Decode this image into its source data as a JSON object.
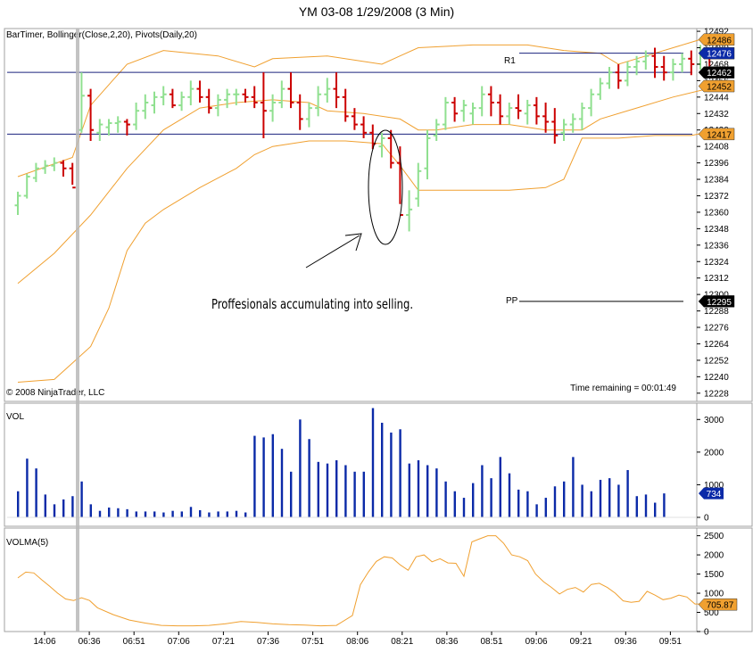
{
  "window": {
    "title": "YM 03-08  1/29/2008  (3 Min)"
  },
  "price_panel": {
    "indicators_label": "BarTimer, Bollinger(Close,2,20), Pivots(Daily,20)",
    "copyright": "© 2008 NinjaTrader, LLC",
    "time_remaining": "Time remaining = 00:01:49",
    "annotation": "Proffesionals accumulating into selling.",
    "pivot_labels": {
      "r1": "R1",
      "pp": "PP"
    },
    "price_badges": [
      {
        "value": "12486",
        "color": "#f0a030"
      },
      {
        "value": "12476",
        "color": "#0b2aa8"
      },
      {
        "value": "12462",
        "color": "#000000"
      },
      {
        "value": "12452",
        "color": "#f0a030"
      },
      {
        "value": "12417",
        "color": "#f0a030"
      },
      {
        "value": "12295",
        "color": "#000000"
      }
    ]
  },
  "vol_panel": {
    "label": "VOL",
    "badge": "734",
    "badge_color": "#0b2aa8"
  },
  "volma_panel": {
    "label": "VOLMA(5)",
    "badge": "705.87",
    "badge_color": "#f0a030"
  },
  "chart_data": [
    {
      "type": "ohlc",
      "title": "YM 03-08  1/29/2008  (3 Min)",
      "ylim": [
        12222,
        12494
      ],
      "yticks": [
        12228,
        12240,
        12252,
        12264,
        12276,
        12288,
        12300,
        12312,
        12324,
        12336,
        12348,
        12360,
        12372,
        12384,
        12396,
        12408,
        12420,
        12432,
        12444,
        12456,
        12468,
        12480,
        12492
      ],
      "xticks": [
        "14:06",
        "06:36",
        "06:51",
        "07:06",
        "07:21",
        "07:36",
        "07:51",
        "08:06",
        "08:21",
        "08:36",
        "08:51",
        "09:06",
        "09:21",
        "09:36",
        "09:51"
      ],
      "colors": {
        "up": "#90e090",
        "down": "#cc0000",
        "bollinger": "#f0a030",
        "pivot": "#0b2aa8"
      },
      "horizontal_lines": [
        12462,
        12417
      ],
      "pivots": {
        "R1": 12476,
        "PP": 12295
      },
      "bars": [
        [
          12365,
          12375,
          12358,
          12372
        ],
        [
          12372,
          12388,
          12370,
          12386
        ],
        [
          12385,
          12396,
          12382,
          12392
        ],
        [
          12392,
          12398,
          12388,
          12394
        ],
        [
          12394,
          12400,
          12390,
          12396
        ],
        [
          12396,
          12398,
          12386,
          12392
        ],
        [
          12392,
          12396,
          12380,
          12378
        ],
        [
          12420,
          12462,
          12418,
          12445
        ],
        [
          12445,
          12450,
          12412,
          12420
        ],
        [
          12418,
          12428,
          12412,
          12424
        ],
        [
          12422,
          12428,
          12416,
          12425
        ],
        [
          12425,
          12430,
          12418,
          12426
        ],
        [
          12426,
          12428,
          12416,
          12424
        ],
        [
          12424,
          12440,
          12420,
          12434
        ],
        [
          12434,
          12446,
          12428,
          12440
        ],
        [
          12438,
          12448,
          12432,
          12444
        ],
        [
          12444,
          12452,
          12438,
          12446
        ],
        [
          12446,
          12450,
          12436,
          12438
        ],
        [
          12438,
          12448,
          12434,
          12444
        ],
        [
          12444,
          12456,
          12438,
          12450
        ],
        [
          12450,
          12456,
          12440,
          12444
        ],
        [
          12444,
          12450,
          12432,
          12436
        ],
        [
          12436,
          12446,
          12430,
          12442
        ],
        [
          12442,
          12450,
          12436,
          12446
        ],
        [
          12446,
          12450,
          12438,
          12446
        ],
        [
          12446,
          12450,
          12440,
          12444
        ],
        [
          12444,
          12452,
          12436,
          12440
        ],
        [
          12440,
          12462,
          12414,
          12434
        ],
        [
          12434,
          12446,
          12426,
          12440
        ],
        [
          12440,
          12456,
          12436,
          12450
        ],
        [
          12450,
          12462,
          12436,
          12440
        ],
        [
          12440,
          12446,
          12420,
          12428
        ],
        [
          12428,
          12440,
          12422,
          12436
        ],
        [
          12436,
          12452,
          12430,
          12446
        ],
        [
          12446,
          12458,
          12440,
          12450
        ],
        [
          12450,
          12462,
          12436,
          12444
        ],
        [
          12444,
          12450,
          12426,
          12430
        ],
        [
          12430,
          12436,
          12420,
          12424
        ],
        [
          12424,
          12430,
          12414,
          12418
        ],
        [
          12418,
          12424,
          12406,
          12410
        ],
        [
          12408,
          12418,
          12400,
          12414
        ],
        [
          12414,
          12420,
          12392,
          12396
        ],
        [
          12396,
          12408,
          12366,
          12358
        ],
        [
          12358,
          12376,
          12346,
          12362
        ],
        [
          12370,
          12396,
          12364,
          12390
        ],
        [
          12392,
          12420,
          12384,
          12414
        ],
        [
          12416,
          12428,
          12412,
          12424
        ],
        [
          12424,
          12444,
          12420,
          12440
        ],
        [
          12440,
          12444,
          12426,
          12432
        ],
        [
          12434,
          12442,
          12426,
          12438
        ],
        [
          12432,
          12440,
          12424,
          12436
        ],
        [
          12436,
          12452,
          12430,
          12446
        ],
        [
          12446,
          12452,
          12430,
          12440
        ],
        [
          12440,
          12446,
          12424,
          12430
        ],
        [
          12430,
          12440,
          12424,
          12436
        ],
        [
          12436,
          12446,
          12428,
          12434
        ],
        [
          12432,
          12442,
          12424,
          12438
        ],
        [
          12438,
          12444,
          12424,
          12430
        ],
        [
          12430,
          12440,
          12418,
          12426
        ],
        [
          12426,
          12436,
          12410,
          12416
        ],
        [
          12418,
          12428,
          12412,
          12424
        ],
        [
          12424,
          12432,
          12418,
          12428
        ],
        [
          12428,
          12440,
          12420,
          12436
        ],
        [
          12436,
          12450,
          12430,
          12446
        ],
        [
          12446,
          12458,
          12442,
          12454
        ],
        [
          12454,
          12466,
          12450,
          12462
        ],
        [
          12462,
          12468,
          12450,
          12456
        ],
        [
          12456,
          12470,
          12452,
          12466
        ],
        [
          12466,
          12474,
          12460,
          12470
        ],
        [
          12470,
          12478,
          12464,
          12474
        ],
        [
          12474,
          12480,
          12458,
          12466
        ],
        [
          12466,
          12474,
          12456,
          12462
        ],
        [
          12462,
          12472,
          12456,
          12468
        ],
        [
          12468,
          12476,
          12462,
          12472
        ],
        [
          12472,
          12478,
          12460,
          12468
        ],
        [
          12468,
          12482,
          12464,
          12476
        ],
        [
          12476,
          12480,
          12460,
          12462
        ]
      ],
      "bollinger": {
        "upper": [
          [
            0,
            12386
          ],
          [
            6,
            12400
          ],
          [
            8,
            12438
          ],
          [
            12,
            12468
          ],
          [
            16,
            12478
          ],
          [
            22,
            12474
          ],
          [
            26,
            12466
          ],
          [
            28,
            12472
          ],
          [
            34,
            12474
          ],
          [
            40,
            12468
          ],
          [
            42,
            12474
          ],
          [
            44,
            12480
          ],
          [
            50,
            12482
          ],
          [
            56,
            12482
          ],
          [
            60,
            12478
          ],
          [
            64,
            12476
          ],
          [
            66,
            12468
          ],
          [
            70,
            12476
          ],
          [
            74,
            12484
          ],
          [
            77,
            12490
          ]
        ],
        "middle": [
          [
            0,
            12308
          ],
          [
            4,
            12330
          ],
          [
            8,
            12358
          ],
          [
            12,
            12392
          ],
          [
            16,
            12420
          ],
          [
            20,
            12436
          ],
          [
            24,
            12440
          ],
          [
            28,
            12442
          ],
          [
            32,
            12440
          ],
          [
            34,
            12434
          ],
          [
            38,
            12432
          ],
          [
            42,
            12428
          ],
          [
            44,
            12420
          ],
          [
            46,
            12420
          ],
          [
            50,
            12424
          ],
          [
            54,
            12424
          ],
          [
            58,
            12420
          ],
          [
            62,
            12420
          ],
          [
            64,
            12428
          ],
          [
            68,
            12436
          ],
          [
            72,
            12444
          ],
          [
            77,
            12452
          ]
        ],
        "lower": [
          [
            0,
            12236
          ],
          [
            4,
            12238
          ],
          [
            6,
            12250
          ],
          [
            8,
            12262
          ],
          [
            10,
            12290
          ],
          [
            12,
            12332
          ],
          [
            14,
            12352
          ],
          [
            16,
            12362
          ],
          [
            20,
            12378
          ],
          [
            24,
            12392
          ],
          [
            26,
            12402
          ],
          [
            28,
            12408
          ],
          [
            32,
            12412
          ],
          [
            36,
            12412
          ],
          [
            40,
            12410
          ],
          [
            42,
            12394
          ],
          [
            44,
            12376
          ],
          [
            50,
            12376
          ],
          [
            54,
            12376
          ],
          [
            58,
            12378
          ],
          [
            60,
            12384
          ],
          [
            62,
            12414
          ],
          [
            66,
            12414
          ],
          [
            70,
            12416
          ],
          [
            74,
            12416
          ],
          [
            77,
            12420
          ]
        ]
      }
    },
    {
      "type": "bar",
      "title": "VOL",
      "ylim": [
        0,
        3500
      ],
      "yticks": [
        0,
        1000,
        2000,
        3000
      ],
      "values": [
        800,
        1800,
        1500,
        700,
        400,
        550,
        650,
        1100,
        400,
        200,
        300,
        280,
        250,
        180,
        180,
        180,
        150,
        200,
        180,
        320,
        220,
        150,
        180,
        180,
        200,
        150,
        2500,
        2450,
        2550,
        2100,
        1400,
        3000,
        2400,
        1700,
        1650,
        1750,
        1600,
        1400,
        1400,
        3350,
        2900,
        2600,
        2700,
        1650,
        1750,
        1600,
        1500,
        1100,
        800,
        600,
        1050,
        1600,
        1200,
        1850,
        1350,
        850,
        800,
        400,
        600,
        950,
        1100,
        1850,
        1000,
        800,
        1150,
        1200,
        1000,
        1450,
        650,
        700,
        450,
        734
      ],
      "color": "#0b2aa8"
    },
    {
      "type": "line",
      "title": "VOLMA(5)",
      "ylim": [
        0,
        2700
      ],
      "yticks": [
        0,
        500,
        1000,
        1500,
        2000,
        2500
      ],
      "points": [
        [
          0,
          1400
        ],
        [
          2,
          1550
        ],
        [
          4,
          1530
        ],
        [
          6,
          1350
        ],
        [
          8,
          1180
        ],
        [
          10,
          1000
        ],
        [
          12,
          850
        ],
        [
          14,
          810
        ],
        [
          16,
          880
        ],
        [
          18,
          810
        ],
        [
          20,
          620
        ],
        [
          24,
          440
        ],
        [
          28,
          300
        ],
        [
          32,
          220
        ],
        [
          36,
          160
        ],
        [
          40,
          150
        ],
        [
          44,
          150
        ],
        [
          48,
          160
        ],
        [
          52,
          200
        ],
        [
          56,
          260
        ],
        [
          60,
          240
        ],
        [
          64,
          200
        ],
        [
          68,
          180
        ],
        [
          72,
          170
        ],
        [
          76,
          150
        ],
        [
          80,
          160
        ],
        [
          84,
          420
        ],
        [
          86,
          1220
        ],
        [
          88,
          1550
        ],
        [
          90,
          1830
        ],
        [
          92,
          1950
        ],
        [
          94,
          1920
        ],
        [
          96,
          1740
        ],
        [
          98,
          1600
        ],
        [
          100,
          1950
        ],
        [
          102,
          2000
        ],
        [
          104,
          1820
        ],
        [
          106,
          1900
        ],
        [
          108,
          1790
        ],
        [
          110,
          1780
        ],
        [
          112,
          1440
        ],
        [
          114,
          2340
        ],
        [
          116,
          2420
        ],
        [
          118,
          2500
        ],
        [
          120,
          2500
        ],
        [
          122,
          2300
        ],
        [
          124,
          2000
        ],
        [
          126,
          1950
        ],
        [
          128,
          1850
        ],
        [
          130,
          1500
        ],
        [
          132,
          1300
        ],
        [
          134,
          1150
        ],
        [
          136,
          980
        ],
        [
          138,
          1100
        ],
        [
          140,
          1150
        ],
        [
          142,
          1030
        ],
        [
          144,
          1230
        ],
        [
          146,
          1260
        ],
        [
          148,
          1150
        ],
        [
          150,
          1000
        ],
        [
          152,
          800
        ],
        [
          154,
          760
        ],
        [
          156,
          790
        ],
        [
          158,
          1050
        ],
        [
          160,
          950
        ],
        [
          162,
          830
        ],
        [
          164,
          870
        ],
        [
          166,
          950
        ],
        [
          168,
          900
        ],
        [
          170,
          720
        ],
        [
          172,
          720
        ],
        [
          174,
          700
        ],
        [
          176,
          705.87
        ]
      ]
    }
  ]
}
